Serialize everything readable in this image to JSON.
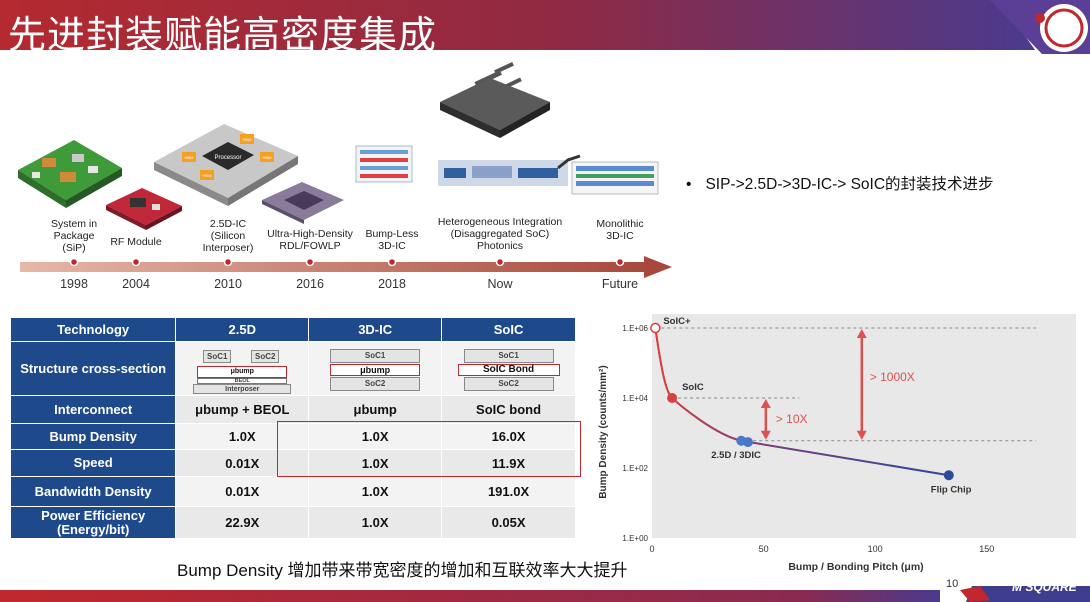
{
  "title": "先进封装赋能高密度集成",
  "colors": {
    "header_red": "#b32630",
    "header_purple": "#5a3a8c",
    "table_blue": "#1e4a8c",
    "highlight": "#c0282d",
    "curve_red": "#d8403c",
    "curve_blue": "#2c4a9a"
  },
  "timeline": {
    "items": [
      {
        "label_lines": [
          "System in",
          "Package",
          "(SiP)"
        ],
        "year": "1998"
      },
      {
        "label_lines": [
          "RF Module"
        ],
        "year": "2004"
      },
      {
        "label_lines": [
          "2.5D-IC",
          "(Silicon",
          "Interposer)"
        ],
        "year": "2010"
      },
      {
        "label_lines": [
          "Ultra-High-Density",
          "RDL/FOWLP"
        ],
        "year": "2016"
      },
      {
        "label_lines": [
          "Bump-Less",
          "3D-IC"
        ],
        "year": "2018"
      },
      {
        "label_lines": [
          "Heterogeneous Integration",
          "(Disaggregated SoC)",
          "Photonics"
        ],
        "year": "Now"
      },
      {
        "label_lines": [
          "Monolithic",
          "3D-IC"
        ],
        "year": "Future"
      }
    ],
    "illustration_text": {
      "interposer_chip": "Processor",
      "hbm": "HBM"
    }
  },
  "bullet": "SIP->2.5D->3D-IC-> SoIC的封装技术进步",
  "table": {
    "headers": [
      "Technology",
      "2.5D",
      "3D-IC",
      "SoIC"
    ],
    "structure_row_label": "Structure cross-section",
    "structure": {
      "d25": {
        "chips": [
          "SoC1",
          "SoC2"
        ],
        "bump": "μbump",
        "beol": "BEOL",
        "base": "Interposer"
      },
      "d3": {
        "top": "SoC1",
        "bump": "μbump",
        "bottom": "SoC2"
      },
      "soic": {
        "top": "SoC1",
        "bond": "SoIC Bond",
        "bottom": "SoC2"
      }
    },
    "rows": [
      {
        "label": "Interconnect",
        "d25": "μbump + BEOL",
        "d3": "μbump",
        "soic": "SoIC bond"
      },
      {
        "label": "Bump Density",
        "d25": "1.0X",
        "d3": "1.0X",
        "soic": "16.0X"
      },
      {
        "label": "Speed",
        "d25": "0.01X",
        "d3": "1.0X",
        "soic": "11.9X"
      },
      {
        "label": "Bandwidth Density",
        "d25": "0.01X",
        "d3": "1.0X",
        "soic": "191.0X"
      },
      {
        "label": "Power Efficiency (Energy/bit)",
        "d25": "22.9X",
        "d3": "1.0X",
        "soic": "0.05X"
      }
    ]
  },
  "caption": "Bump Density 增加带来带宽密度的增加和互联效率大大提升",
  "chart_data": {
    "type": "line",
    "xlabel": "Bump / Bonding Pitch (μm)",
    "ylabel": "Bump Density (counts/mm²)",
    "x_ticks": [
      "0",
      "50",
      "100",
      "150"
    ],
    "y_ticks": [
      "1.E+00",
      "1.E+02",
      "1.E+04",
      "1.E+06"
    ],
    "xlim": [
      0,
      150
    ],
    "ylim_log10": [
      0,
      6
    ],
    "points": [
      {
        "label": "SoIC+",
        "x": 1.5,
        "y": 1000000
      },
      {
        "label": "SoIC",
        "x": 9,
        "y": 10000
      },
      {
        "label": "2.5D / 3DIC",
        "x": 40,
        "y": 600
      },
      {
        "label": "",
        "x": 43,
        "y": 550
      },
      {
        "label": "Flip Chip",
        "x": 133,
        "y": 62
      }
    ],
    "annotations": [
      {
        "text": "> 10X",
        "from": 10000,
        "to": 600
      },
      {
        "text": "> 1000X",
        "from": 1000000,
        "to": 600
      }
    ]
  },
  "footer": {
    "page_number": "10",
    "logo": "M SQUARE"
  }
}
